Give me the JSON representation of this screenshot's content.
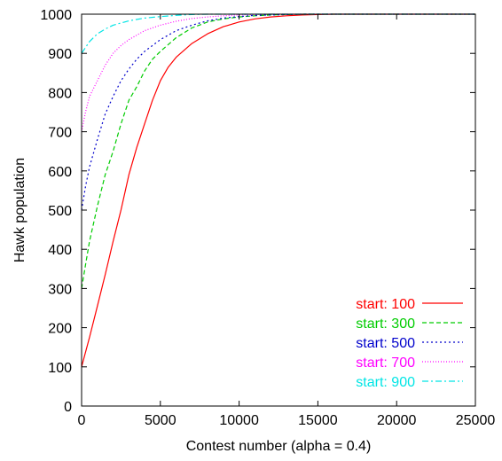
{
  "chart_data": {
    "type": "line",
    "title": "",
    "xlabel": "Contest number (alpha = 0.4)",
    "ylabel": "Hawk population",
    "xlim": [
      0,
      25000
    ],
    "ylim": [
      0,
      1000
    ],
    "xticks": [
      0,
      5000,
      10000,
      15000,
      20000,
      25000
    ],
    "yticks": [
      0,
      100,
      200,
      300,
      400,
      500,
      600,
      700,
      800,
      900,
      1000
    ],
    "xtick_labels": [
      "0",
      "5000",
      "10000",
      "15000",
      "20000",
      "25000"
    ],
    "ytick_labels": [
      "0",
      "100",
      "200",
      "300",
      "400",
      "500",
      "600",
      "700",
      "800",
      "900",
      "1000"
    ],
    "grid": false,
    "legend_position": "bottom-right",
    "series": [
      {
        "name": "start: 100",
        "color": "#ff0000",
        "dash": "solid",
        "x": [
          0,
          500,
          1000,
          1500,
          2000,
          2500,
          3000,
          3500,
          4000,
          4500,
          5000,
          5500,
          6000,
          7000,
          8000,
          9000,
          10000,
          11000,
          12000,
          13000,
          14000,
          15000,
          16000,
          17000,
          18000,
          19000,
          20000,
          25000
        ],
        "y": [
          100,
          175,
          255,
          335,
          420,
          500,
          590,
          660,
          720,
          780,
          830,
          865,
          890,
          925,
          950,
          968,
          980,
          988,
          993,
          996,
          998,
          999,
          1000,
          1000,
          1000,
          1000,
          1000,
          1000
        ]
      },
      {
        "name": "start: 300",
        "color": "#00cc00",
        "dash": "5,3",
        "x": [
          0,
          250,
          500,
          1000,
          1500,
          2000,
          2500,
          3000,
          3500,
          4000,
          4500,
          5000,
          6000,
          7000,
          8000,
          9000,
          10000,
          11000,
          12000,
          13000,
          14000,
          15000,
          16000,
          18500,
          25000
        ],
        "y": [
          300,
          360,
          420,
          510,
          590,
          650,
          720,
          780,
          815,
          855,
          885,
          905,
          940,
          965,
          980,
          988,
          993,
          996,
          998,
          999,
          1000,
          1000,
          1000,
          1000,
          1000
        ]
      },
      {
        "name": "start: 500",
        "color": "#0000cc",
        "dash": "2,3",
        "x": [
          0,
          250,
          500,
          1000,
          1500,
          2000,
          2500,
          3000,
          3500,
          4000,
          5000,
          6000,
          7000,
          8000,
          9000,
          10000,
          11000,
          12000,
          13000,
          14000,
          15000,
          16000,
          25000
        ],
        "y": [
          500,
          560,
          610,
          680,
          745,
          790,
          830,
          860,
          885,
          905,
          935,
          958,
          972,
          983,
          990,
          994,
          997,
          998,
          999,
          1000,
          1000,
          1000,
          1000
        ]
      },
      {
        "name": "start: 700",
        "color": "#ff00ff",
        "dash": "1,2",
        "x": [
          0,
          250,
          500,
          1000,
          1500,
          2000,
          2500,
          3000,
          4000,
          5000,
          6000,
          7000,
          8000,
          9000,
          10000,
          11000,
          12000,
          13000,
          15000,
          25000
        ],
        "y": [
          700,
          750,
          790,
          830,
          870,
          900,
          920,
          935,
          958,
          972,
          982,
          989,
          993,
          996,
          998,
          999,
          1000,
          1000,
          1000,
          1000
        ]
      },
      {
        "name": "start: 900",
        "color": "#00e5e5",
        "dash": "7,3,2,3",
        "x": [
          0,
          250,
          500,
          1000,
          1500,
          2000,
          3000,
          4000,
          5000,
          6000,
          7000,
          8000,
          10000,
          25000
        ],
        "y": [
          900,
          915,
          930,
          950,
          962,
          972,
          983,
          990,
          994,
          997,
          999,
          1000,
          1000,
          1000
        ]
      }
    ]
  }
}
